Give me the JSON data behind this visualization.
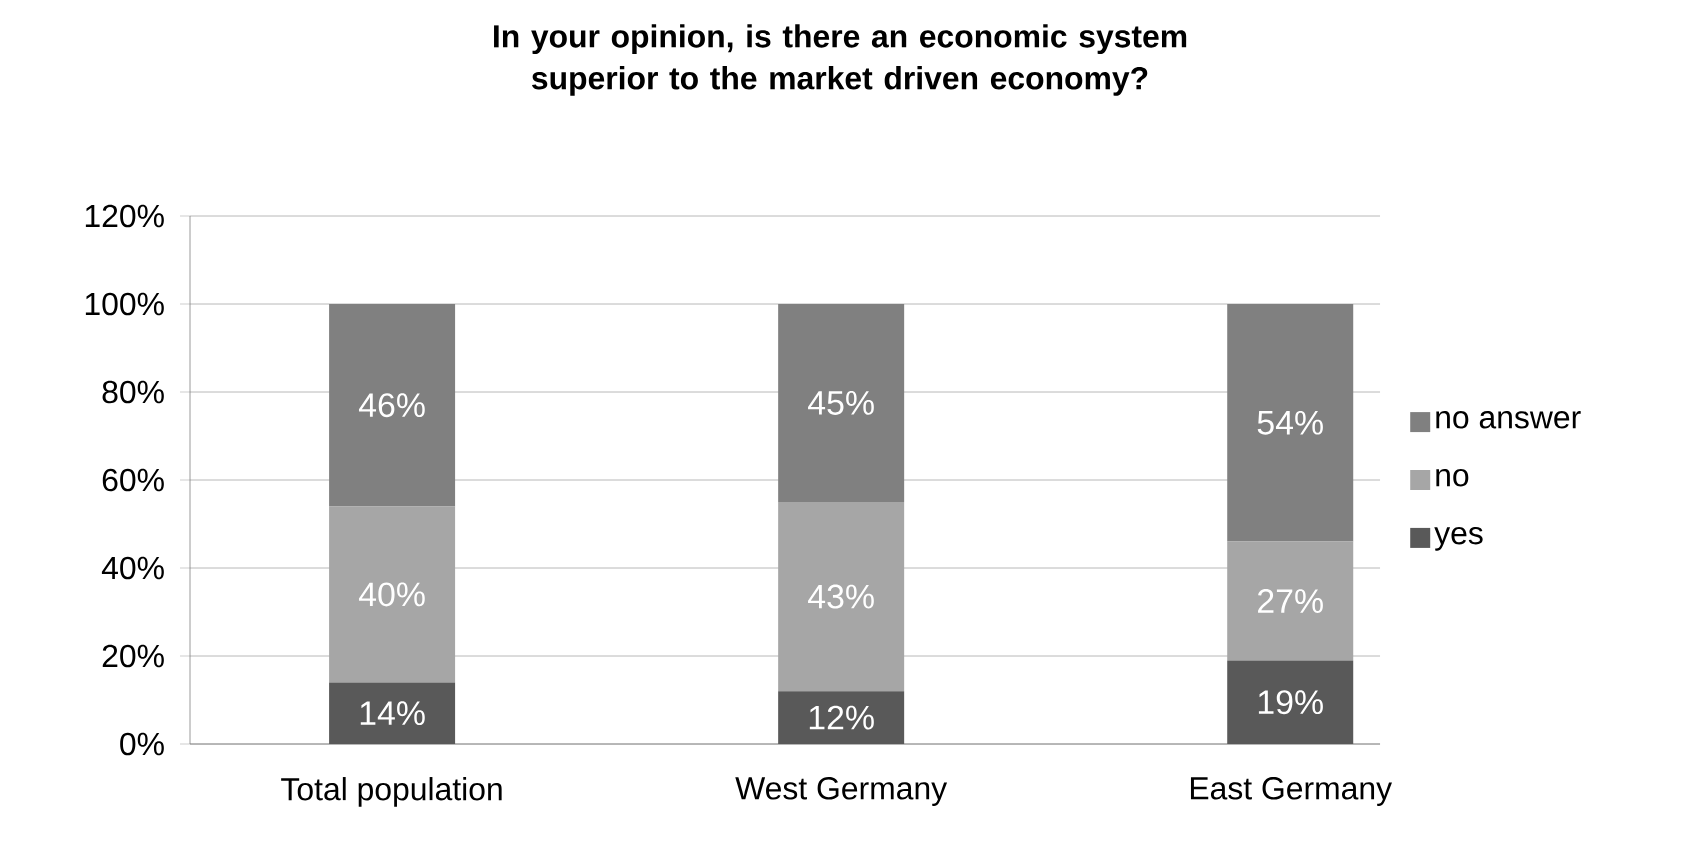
{
  "chart_data": {
    "type": "bar",
    "stacked": true,
    "title": "In your opinion, is there an economic system superior to the market driven economy?",
    "categories": [
      "Total population",
      "West Germany",
      "East Germany"
    ],
    "series": [
      {
        "name": "yes",
        "color": "#595959",
        "values": [
          14,
          12,
          19
        ],
        "value_labels": [
          "14%",
          "12%",
          "19%"
        ]
      },
      {
        "name": "no",
        "color": "#a6a6a6",
        "values": [
          40,
          43,
          27
        ],
        "value_labels": [
          "40%",
          "43%",
          "27%"
        ]
      },
      {
        "name": "no answer",
        "color": "#808080",
        "values": [
          46,
          45,
          54
        ],
        "value_labels": [
          "46%",
          "45%",
          "54%"
        ]
      }
    ],
    "ylim": [
      0,
      120
    ],
    "yticks": [
      {
        "value": 0,
        "label": "0%"
      },
      {
        "value": 20,
        "label": "20%"
      },
      {
        "value": 40,
        "label": "40%"
      },
      {
        "value": 60,
        "label": "60%"
      },
      {
        "value": 80,
        "label": "80%"
      },
      {
        "value": 100,
        "label": "100%"
      },
      {
        "value": 120,
        "label": "120%"
      }
    ],
    "grid": "y",
    "legend": "right"
  }
}
